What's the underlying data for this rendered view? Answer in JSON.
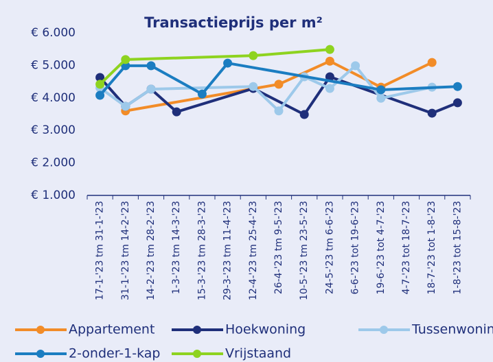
{
  "chart_data": {
    "type": "line",
    "title": "Transactieprijs per m²",
    "categories": [
      "17-1-'23 tm 31-1-'23",
      "31-1-'23 tm 14-2-'23",
      "14-2-'23 tm 28-2-'23",
      "1-3-'23 tm 14-3-'23",
      "15-3-'23 tm 28-3-'23",
      "29-3-'23 tm 11-4-'23",
      "12-4-'23 tm 25-4-'23",
      "26-4-'23 tm 9-5-'23",
      "10-5-'23 tm 23-5-'23",
      "24-5-'23 tm 6-6-'23",
      "6-6-'23 tot 19-6-'23",
      "19-6-'23 tot 4-7-'23",
      "4-7-'23 tot 18-7-'23",
      "18-7-'23 tot 1-8-'23",
      "1-8-'23 tot 15-8-'23"
    ],
    "series": [
      {
        "name": "Appartement",
        "color": "#f28c28",
        "values": [
          null,
          3600,
          null,
          null,
          null,
          null,
          null,
          4420,
          null,
          5130,
          null,
          4330,
          null,
          5090,
          null
        ]
      },
      {
        "name": "Hoekwoning",
        "color": "#1f2f7a",
        "values": [
          4630,
          3740,
          4270,
          3570,
          null,
          null,
          4290,
          null,
          3490,
          4650,
          null,
          null,
          null,
          3530,
          3850
        ]
      },
      {
        "name": "Tussenwoning",
        "color": "#9dc9ea",
        "values": [
          4310,
          3740,
          4270,
          null,
          null,
          null,
          4350,
          3600,
          4650,
          4290,
          4990,
          3990,
          null,
          4330,
          null
        ]
      },
      {
        "name": "2-onder-1-kap",
        "color": "#1b7dc1",
        "values": [
          4080,
          4990,
          4990,
          null,
          4120,
          5070,
          null,
          null,
          null,
          null,
          null,
          4250,
          null,
          null,
          4350
        ]
      },
      {
        "name": "Vrijstaand",
        "color": "#8ed320",
        "values": [
          4420,
          5180,
          null,
          null,
          null,
          null,
          5300,
          null,
          null,
          5490,
          null,
          null,
          null,
          null,
          null
        ]
      }
    ],
    "ylim": [
      1000,
      6000
    ],
    "yticks": [
      {
        "value": 1000,
        "label": "€ 1.000"
      },
      {
        "value": 2000,
        "label": "€ 2.000"
      },
      {
        "value": 3000,
        "label": "€ 3.000"
      },
      {
        "value": 4000,
        "label": "€ 4.000"
      },
      {
        "value": 5000,
        "label": "€ 5.000"
      },
      {
        "value": 6000,
        "label": "€ 6.000"
      }
    ],
    "connect_gaps": true,
    "legend": "bottom"
  }
}
